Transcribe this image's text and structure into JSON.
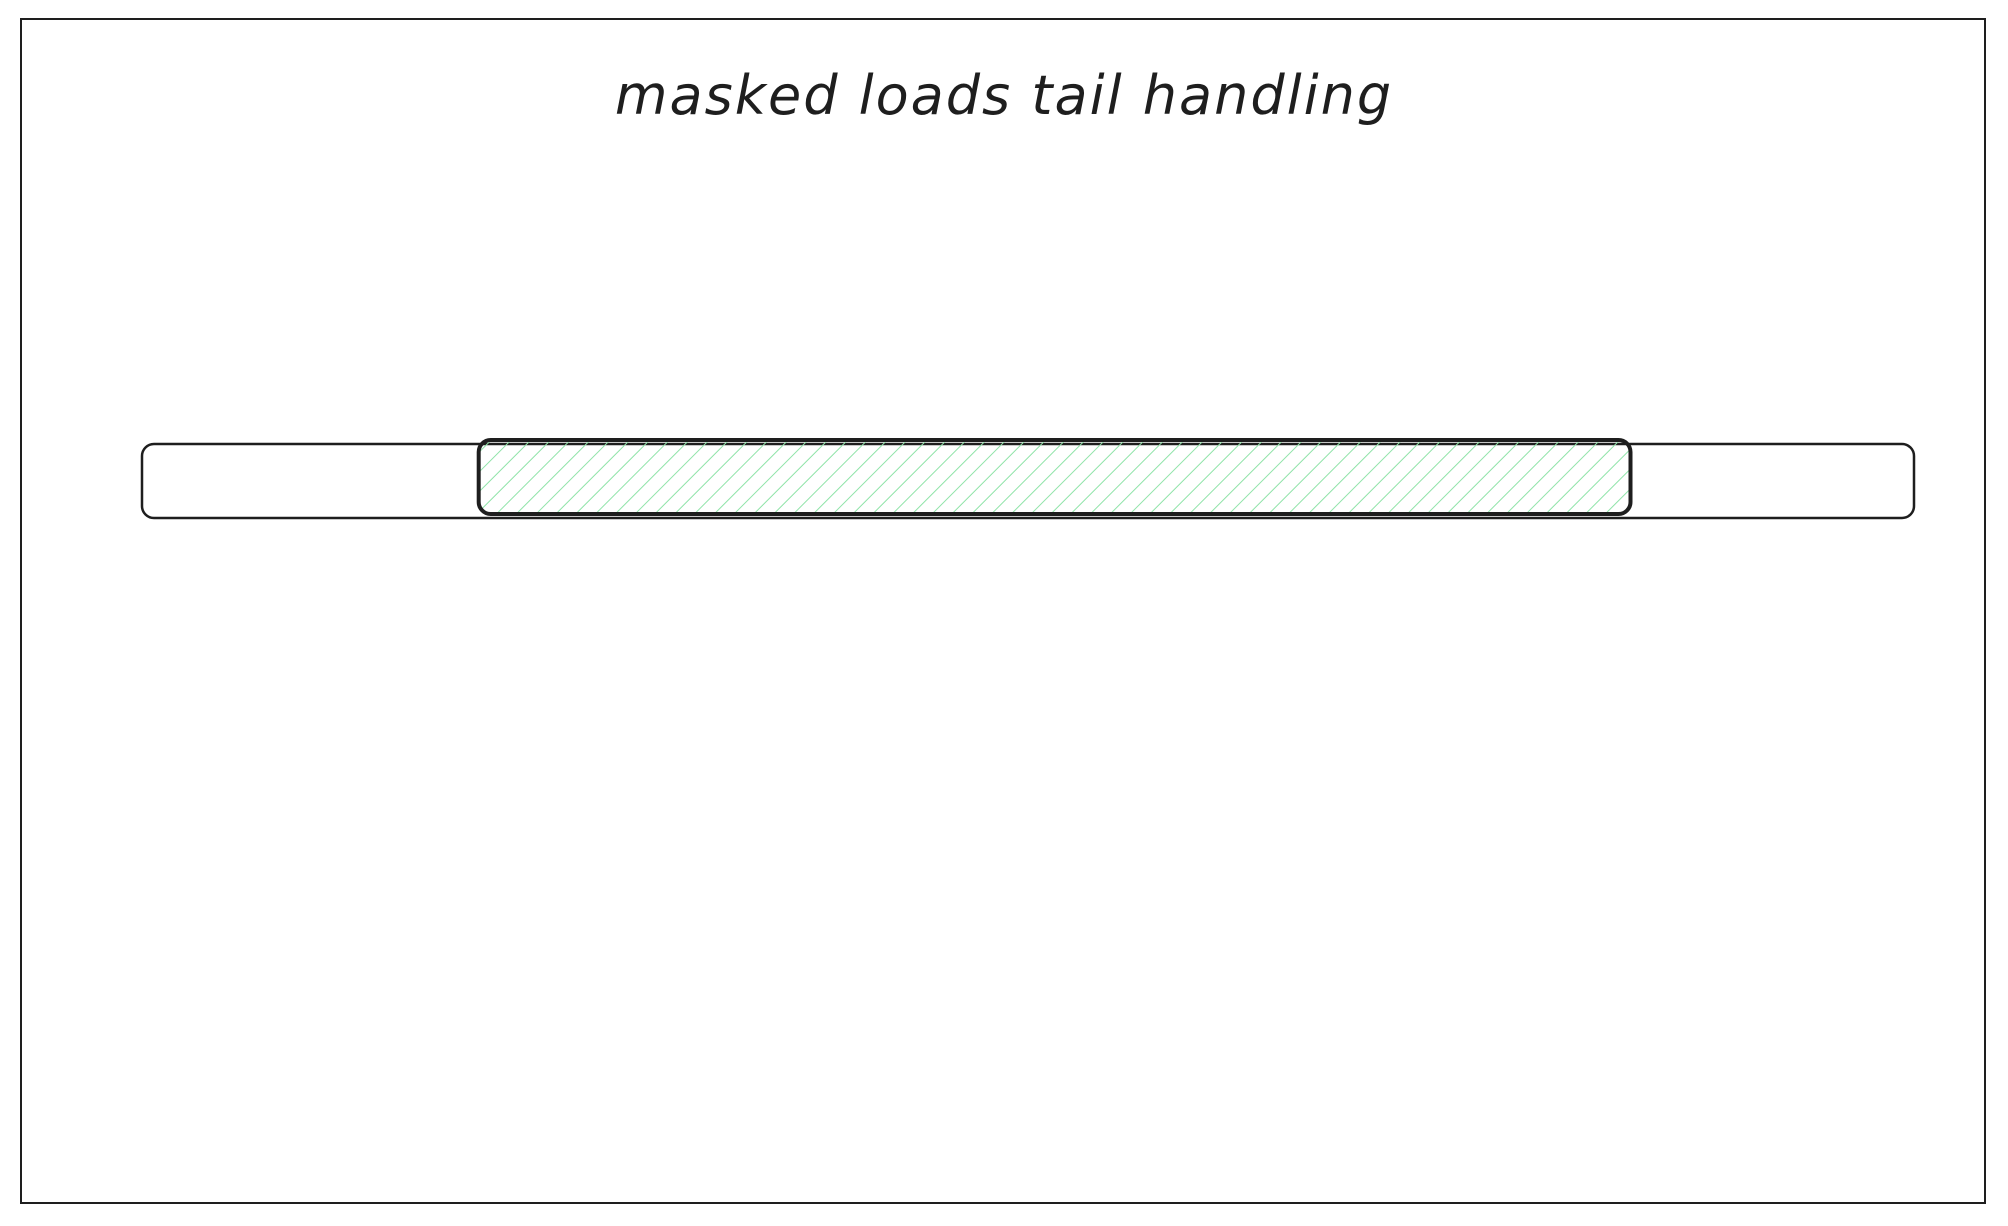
{
  "diagram": {
    "title": "masked loads tail handling",
    "colors": {
      "stroke": "#1e1e1e",
      "mask_hatch": "#8fe3a8",
      "background": "#ffffff"
    },
    "buffer": {
      "masked_region": {
        "start_fraction": 0.19,
        "end_fraction": 0.84
      }
    }
  }
}
